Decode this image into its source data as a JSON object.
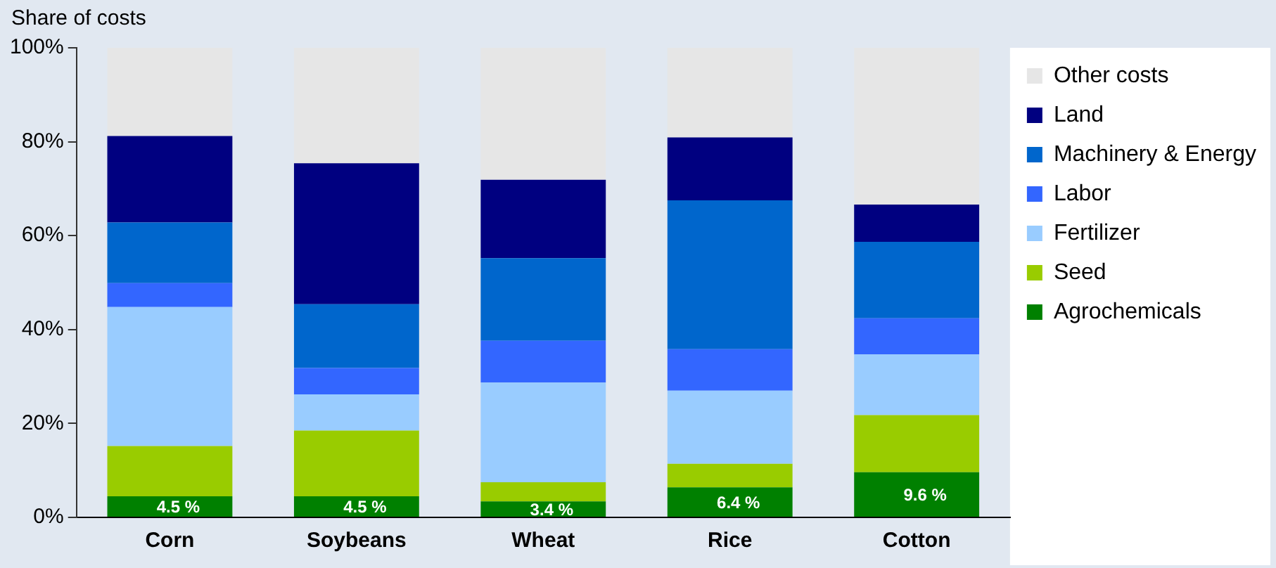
{
  "chart_data": {
    "type": "bar",
    "stacked": true,
    "ylabel": "Share of costs",
    "categories": [
      "Corn",
      "Soybeans",
      "Wheat",
      "Rice",
      "Cotton"
    ],
    "series": [
      {
        "name": "Agrochemicals",
        "color": "#008000",
        "values": [
          4.5,
          4.5,
          3.4,
          6.4,
          9.6
        ],
        "value_labels": [
          "4.5 %",
          "4.5 %",
          "3.4 %",
          "6.4 %",
          "9.6 %"
        ]
      },
      {
        "name": "Seed",
        "color": "#99cc00",
        "values": [
          10.7,
          14,
          4.1,
          5,
          12.2
        ]
      },
      {
        "name": "Fertilizer",
        "color": "#99ccff",
        "values": [
          29.6,
          7.7,
          21.2,
          15.6,
          12.9
        ]
      },
      {
        "name": "Labor",
        "color": "#3366ff",
        "values": [
          5.1,
          5.6,
          8.9,
          8.8,
          7.7
        ]
      },
      {
        "name": "Machinery & Energy",
        "color": "#0066cc",
        "values": [
          12.9,
          13.6,
          17.6,
          31.7,
          16.3
        ]
      },
      {
        "name": "Land",
        "color": "#000080",
        "values": [
          18.4,
          30,
          16.7,
          13.4,
          7.9
        ]
      },
      {
        "name": "Other costs",
        "color": "#e6e6e6",
        "values": [
          18.8,
          24.6,
          28.1,
          19.1,
          33.4
        ]
      }
    ],
    "ylim": [
      0,
      100
    ],
    "yticks": [
      {
        "value": 0,
        "label": "0%"
      },
      {
        "value": 20,
        "label": "20%"
      },
      {
        "value": 40,
        "label": "40%"
      },
      {
        "value": 60,
        "label": "60%"
      },
      {
        "value": 80,
        "label": "80%"
      },
      {
        "value": 100,
        "label": "100%"
      }
    ],
    "grid": false,
    "legend": "right"
  }
}
